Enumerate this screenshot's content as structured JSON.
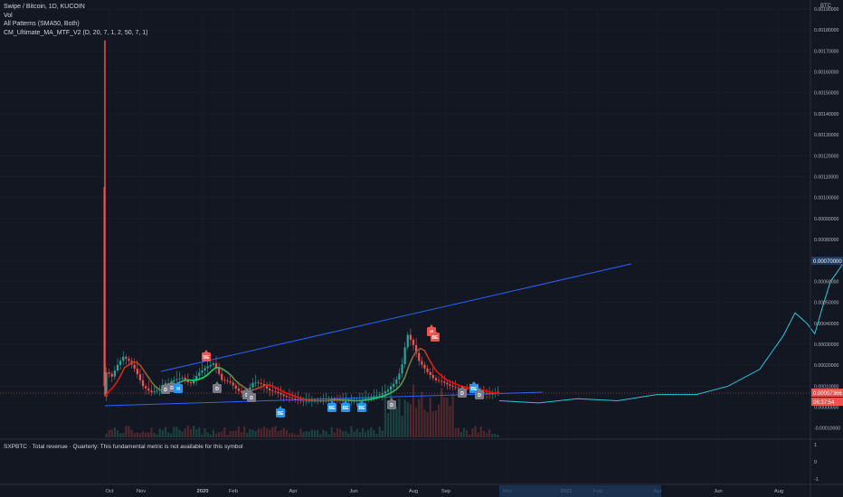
{
  "legend": {
    "symbol": "Swipe / Bitcoin, 1D, KUCOIN",
    "line2": "Vol",
    "line3": "All Patterns (SMA50, Both)",
    "line4": "CM_Ultimate_MA_MTF_V2 (D, 20, 7, 1, 2, 50, 7, 1)"
  },
  "currency": "BTC",
  "fundamental_note": "SXPBTC · Total revenue · Quarterly: This fundamental metric is not available for this symbol",
  "price_badges": {
    "last": "0.00007366",
    "countdown": "06:37:54"
  },
  "pattern_labels": [
    "BE",
    "D",
    "D",
    "H",
    "D",
    "D",
    "D",
    "BE",
    "BE",
    "BE",
    "BE",
    "D",
    "H",
    "BE",
    "D",
    "BE",
    "D"
  ],
  "colors": {
    "background": "#131722",
    "up": "#26a69a",
    "down": "#ef5350",
    "trend": "#2962ff",
    "ma_line": "#ff0000",
    "ma_line_up": "#00e676"
  },
  "chart_data": {
    "type": "line",
    "title": "Swipe / Bitcoin, 1D, KUCOIN",
    "x_ticks": [
      "Oct",
      "Nov",
      "2020",
      "Feb",
      "Apr",
      "Jun",
      "Aug",
      "Sep",
      "Nov",
      "2021",
      "Feb",
      "Apr",
      "Jun",
      "Aug"
    ],
    "y_ticks": [
      "0.00190000",
      "0.00180000",
      "0.00170000",
      "0.00160000",
      "0.00150000",
      "0.00140000",
      "0.00130000",
      "0.00120000",
      "0.00110000",
      "0.00100000",
      "0.00090000",
      "0.00080000",
      "0.00070000",
      "0.00060000",
      "0.00050000",
      "0.00040000",
      "0.00030000",
      "0.00020000",
      "0.00010000",
      "0.00000000",
      "-0.00010000"
    ],
    "ylim": [
      -0.00011,
      0.0019
    ],
    "lower_pane_ticks": [
      "1",
      "0",
      "-1"
    ],
    "series": [
      {
        "name": "SXPBTC",
        "points": [
          [
            0,
            5e-05
          ],
          [
            0.008,
            0.00018
          ],
          [
            0.02,
            0.00014
          ],
          [
            0.035,
            0.0002
          ],
          [
            0.05,
            0.00024
          ],
          [
            0.065,
            0.00022
          ],
          [
            0.08,
            0.00018
          ],
          [
            0.1,
            0.0001
          ],
          [
            0.12,
            7e-05
          ],
          [
            0.14,
            8e-05
          ],
          [
            0.16,
            0.00011
          ],
          [
            0.18,
            0.00013
          ],
          [
            0.2,
            0.00014
          ],
          [
            0.22,
            0.00011
          ],
          [
            0.24,
            0.00016
          ],
          [
            0.26,
            0.00019
          ],
          [
            0.28,
            0.00021
          ],
          [
            0.3,
            0.00013
          ],
          [
            0.32,
            0.00012
          ],
          [
            0.34,
            8e-05
          ],
          [
            0.36,
            6e-05
          ],
          [
            0.38,
            0.00012
          ],
          [
            0.4,
            0.00011
          ],
          [
            0.42,
            8e-05
          ],
          [
            0.44,
            7e-05
          ],
          [
            0.46,
            5e-05
          ],
          [
            0.48,
            4e-05
          ],
          [
            0.5,
            3e-05
          ],
          [
            0.52,
            3e-05
          ],
          [
            0.54,
            3e-05
          ],
          [
            0.56,
            3e-05
          ],
          [
            0.58,
            4e-05
          ],
          [
            0.6,
            3e-05
          ],
          [
            0.62,
            3e-05
          ],
          [
            0.64,
            3e-05
          ],
          [
            0.66,
            4e-05
          ],
          [
            0.68,
            5e-05
          ],
          [
            0.7,
            6e-05
          ],
          [
            0.72,
            8e-05
          ],
          [
            0.74,
            0.00012
          ],
          [
            0.755,
            0.00018
          ],
          [
            0.77,
            0.00035
          ],
          [
            0.785,
            0.0003
          ],
          [
            0.8,
            0.00022
          ],
          [
            0.82,
            0.00017
          ],
          [
            0.84,
            0.00013
          ],
          [
            0.86,
            0.00012
          ],
          [
            0.88,
            0.0001
          ],
          [
            0.9,
            9e-05
          ],
          [
            0.92,
            9e-05
          ],
          [
            0.94,
            8e-05
          ],
          [
            0.96,
            7e-05
          ],
          [
            0.98,
            6e-05
          ],
          [
            1.0,
            7.366e-05
          ]
        ]
      },
      {
        "name": "projection",
        "points": [
          [
            1.0,
            3e-05
          ],
          [
            1.1,
            2e-05
          ],
          [
            1.2,
            4e-05
          ],
          [
            1.3,
            3e-05
          ],
          [
            1.4,
            6e-05
          ],
          [
            1.5,
            6e-05
          ],
          [
            1.58,
            0.0001
          ],
          [
            1.66,
            0.00018
          ],
          [
            1.72,
            0.00034
          ],
          [
            1.75,
            0.00045
          ],
          [
            1.78,
            0.0004
          ],
          [
            1.8,
            0.00035
          ],
          [
            1.82,
            0.00048
          ],
          [
            1.84,
            0.0006
          ],
          [
            1.87,
            0.00068
          ],
          [
            1.9,
            0.00074
          ]
        ]
      }
    ],
    "spike": {
      "x": 0.0,
      "high": 0.00175,
      "low": 5e-05
    }
  }
}
